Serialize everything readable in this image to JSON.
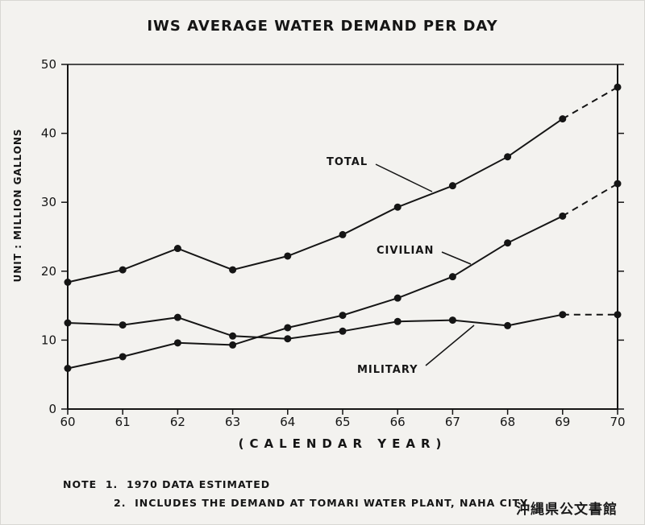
{
  "chart_data": {
    "type": "line",
    "title": "IWS AVERAGE WATER DEMAND PER DAY",
    "xlabel": "(CALENDAR YEAR)",
    "ylabel": "UNIT : MILLION GALLONS",
    "x": [
      "60",
      "61",
      "62",
      "63",
      "64",
      "65",
      "66",
      "67",
      "68",
      "69",
      "70"
    ],
    "ylim": [
      0,
      50
    ],
    "yticks": [
      0,
      10,
      20,
      30,
      40,
      50
    ],
    "grid": false,
    "series": [
      {
        "name": "TOTAL",
        "values": [
          18.4,
          20.2,
          23.3,
          20.2,
          22.2,
          25.3,
          29.3,
          32.4,
          36.6,
          42.1,
          46.7
        ],
        "estimated_from_index": 9
      },
      {
        "name": "CIVILIAN",
        "values": [
          5.9,
          7.6,
          9.6,
          9.3,
          11.8,
          13.6,
          16.1,
          19.2,
          24.1,
          28.0,
          32.7
        ],
        "estimated_from_index": 9
      },
      {
        "name": "MILITARY",
        "values": [
          12.5,
          12.2,
          13.3,
          10.6,
          10.2,
          11.3,
          12.7,
          12.9,
          12.1,
          13.7,
          13.7
        ],
        "estimated_from_index": 9
      }
    ]
  },
  "notes": {
    "line1": "NOTE  1.  1970 DATA ESTIMATED",
    "line2": "2.  INCLUDES THE DEMAND AT TOMARI WATER PLANT, NAHA CITY."
  },
  "stamp": "沖縄県公文書館"
}
